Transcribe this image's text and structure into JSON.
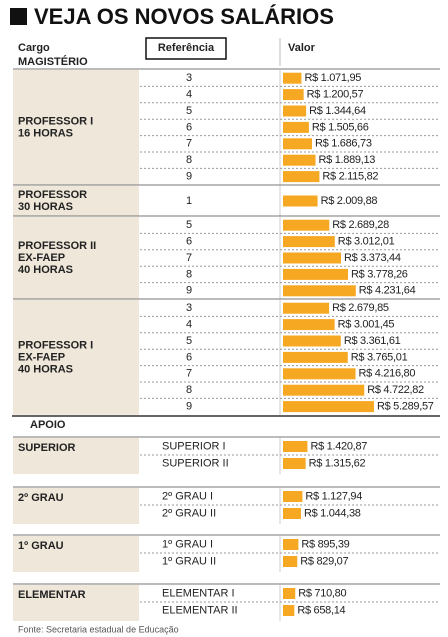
{
  "title": "VEJA OS NOVOS SALÁRIOS",
  "headers": {
    "cargo": "Cargo",
    "referencia": "Referência",
    "valor": "Valor"
  },
  "sections": [
    {
      "title": "MAGISTÉRIO",
      "groups": [
        {
          "label": [
            "PROFESSOR I",
            "16 HORAS"
          ],
          "rows": [
            {
              "ref": 3,
              "value": 1071.95,
              "value_label": "R$ 1.071,95"
            },
            {
              "ref": 4,
              "value": 1200.57,
              "value_label": "R$ 1.200,57"
            },
            {
              "ref": 5,
              "value": 1344.64,
              "value_label": "R$ 1.344,64"
            },
            {
              "ref": 6,
              "value": 1505.66,
              "value_label": "R$ 1.505,66"
            },
            {
              "ref": 7,
              "value": 1686.73,
              "value_label": "R$ 1.686,73"
            },
            {
              "ref": 8,
              "value": 1889.13,
              "value_label": "R$ 1.889,13"
            },
            {
              "ref": 9,
              "value": 2115.82,
              "value_label": "R$ 2.115,82"
            }
          ]
        },
        {
          "label": [
            "PROFESSOR",
            "30 HORAS"
          ],
          "rows": [
            {
              "ref": 1,
              "value": 2009.88,
              "value_label": "R$ 2.009,88"
            }
          ]
        },
        {
          "label": [
            "PROFESSOR II",
            "EX-FAEP",
            "40 HORAS"
          ],
          "rows": [
            {
              "ref": 5,
              "value": 2689.28,
              "value_label": "R$ 2.689,28"
            },
            {
              "ref": 6,
              "value": 3012.01,
              "value_label": "R$ 3.012,01"
            },
            {
              "ref": 7,
              "value": 3373.44,
              "value_label": "R$ 3.373,44"
            },
            {
              "ref": 8,
              "value": 3778.26,
              "value_label": "R$ 3.778,26"
            },
            {
              "ref": 9,
              "value": 4231.64,
              "value_label": "R$ 4.231,64"
            }
          ]
        },
        {
          "label": [
            "PROFESSOR I",
            "EX-FAEP",
            "40 HORAS"
          ],
          "rows": [
            {
              "ref": 3,
              "value": 2679.85,
              "value_label": "R$ 2.679,85"
            },
            {
              "ref": 4,
              "value": 3001.45,
              "value_label": "R$ 3.001,45"
            },
            {
              "ref": 5,
              "value": 3361.61,
              "value_label": "R$ 3.361,61"
            },
            {
              "ref": 6,
              "value": 3765.01,
              "value_label": "R$ 3.765,01"
            },
            {
              "ref": 7,
              "value": 4216.8,
              "value_label": "R$ 4.216,80"
            },
            {
              "ref": 8,
              "value": 4722.82,
              "value_label": "R$ 4.722,82"
            },
            {
              "ref": 9,
              "value": 5289.57,
              "value_label": "R$ 5.289,57"
            }
          ]
        }
      ]
    },
    {
      "title": "APOIO",
      "groups": [
        {
          "label": [
            "SUPERIOR"
          ],
          "rows": [
            {
              "ref": "SUPERIOR I",
              "value": 1420.87,
              "value_label": "R$ 1.420,87"
            },
            {
              "ref": "SUPERIOR II",
              "value": 1315.62,
              "value_label": "R$ 1.315,62"
            }
          ]
        },
        {
          "label": [
            "2º GRAU"
          ],
          "rows": [
            {
              "ref": "2º GRAU I",
              "value": 1127.94,
              "value_label": "R$ 1.127,94"
            },
            {
              "ref": "2º GRAU II",
              "value": 1044.38,
              "value_label": "R$ 1.044,38"
            }
          ]
        },
        {
          "label": [
            "1º GRAU"
          ],
          "rows": [
            {
              "ref": "1º GRAU I",
              "value": 895.39,
              "value_label": "R$ 895,39"
            },
            {
              "ref": "1º GRAU II",
              "value": 829.07,
              "value_label": "R$ 829,07"
            }
          ]
        },
        {
          "label": [
            "ELEMENTAR"
          ],
          "rows": [
            {
              "ref": "ELEMENTAR I",
              "value": 710.8,
              "value_label": "R$ 710,80"
            },
            {
              "ref": "ELEMENTAR II",
              "value": 658.14,
              "value_label": "R$ 658,14"
            }
          ]
        }
      ]
    }
  ],
  "source": "Fonte: Secretaria estadual de Educação"
}
